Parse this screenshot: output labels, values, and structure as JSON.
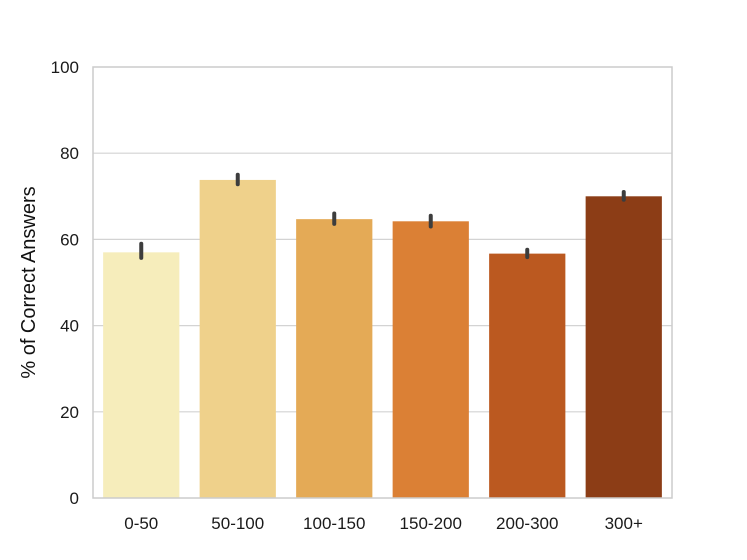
{
  "chart_data": {
    "type": "bar",
    "title": "",
    "xlabel": "",
    "ylabel": "% of Correct Answers",
    "ylim": [
      0,
      100
    ],
    "yticks": [
      "0",
      "20",
      "40",
      "60",
      "80",
      "100"
    ],
    "ytick_values": [
      0,
      20,
      40,
      60,
      80,
      100
    ],
    "grid": true,
    "categories": [
      "0-50",
      "50-100",
      "100-150",
      "150-200",
      "200-300",
      "300+"
    ],
    "values": [
      57.0,
      73.8,
      64.7,
      64.2,
      56.7,
      70.0
    ],
    "error_low": [
      55.7,
      72.8,
      63.6,
      63.0,
      55.9,
      69.2
    ],
    "error_high": [
      59.0,
      75.0,
      66.0,
      65.5,
      57.6,
      71.0
    ],
    "colors": [
      "#f6edbb",
      "#efd18b",
      "#e4aa56",
      "#db8035",
      "#bb5920",
      "#8c3d16"
    ],
    "error_color": "#3d3d3d"
  }
}
